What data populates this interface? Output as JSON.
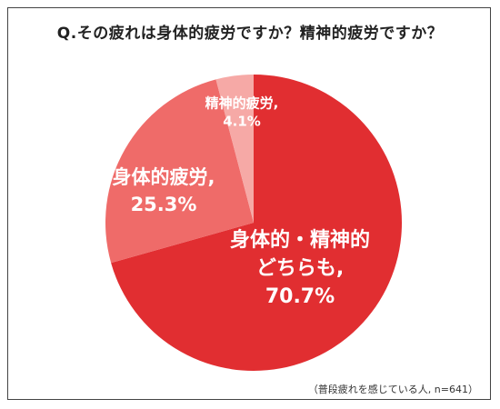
{
  "title": "Q.その疲れは身体的疲労ですか？精神的疲労ですか？",
  "note": "（普段疲れを感じている人, n=641）",
  "chart_data": {
    "type": "pie",
    "start": "12 o'clock",
    "direction": "clockwise",
    "slices": [
      {
        "label_lines": [
          "身体的・精神的",
          "どちらも,"
        ],
        "value_text": "70.7%",
        "value": 70.7,
        "color": "#e12e31"
      },
      {
        "label_lines": [
          "身体的疲労,"
        ],
        "value_text": "25.3%",
        "value": 25.3,
        "color": "#ef6b69"
      },
      {
        "label_lines": [
          "精神的疲労,"
        ],
        "value_text": "4.1%",
        "value": 4.1,
        "color": "#f6a9a6"
      }
    ]
  }
}
